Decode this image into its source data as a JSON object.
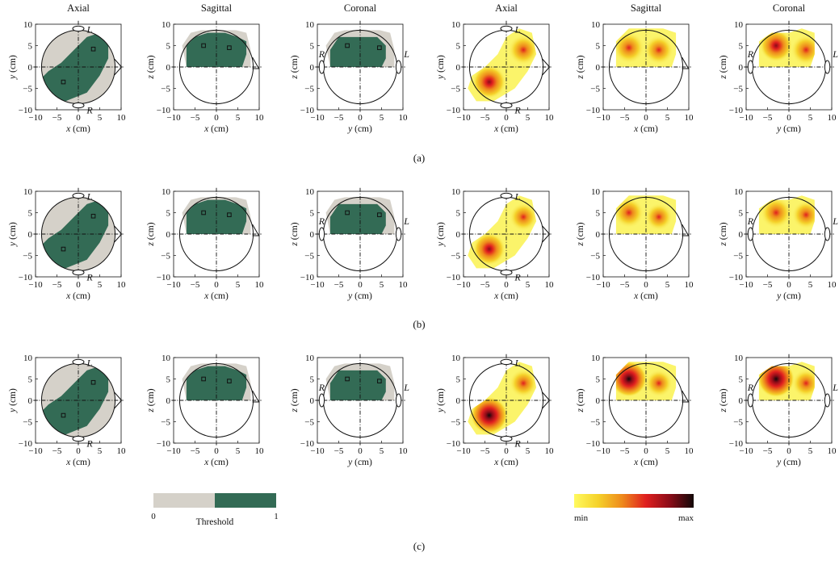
{
  "titles": [
    "Axial",
    "Sagittal",
    "Coronal",
    "Axial",
    "Sagittal",
    "Coronal"
  ],
  "row_labels": [
    "(a)",
    "(b)",
    "(c)"
  ],
  "axis": {
    "ticks": [
      "−10",
      "−5",
      "0",
      "5",
      "10"
    ],
    "xlabels": [
      "x (cm)",
      "x (cm)",
      "y (cm)",
      "x (cm)",
      "x (cm)",
      "y (cm)"
    ],
    "ylabels": [
      "y (cm)",
      "z (cm)",
      "z (cm)",
      "y (cm)",
      "z (cm)",
      "z (cm)"
    ],
    "xlabel_var": [
      "x",
      "x",
      "y",
      "x",
      "x",
      "y"
    ],
    "ylabel_var": [
      "y",
      "z",
      "z",
      "y",
      "z",
      "z"
    ],
    "unit": "(cm)"
  },
  "ear_labels": {
    "axial_top": "L",
    "axial_bottom": "R",
    "coronal_left": "R",
    "coronal_right": "L"
  },
  "colorbar_threshold": {
    "label": "Threshold",
    "min_label": "0",
    "max_label": "1",
    "colors": [
      "#d5d1c9",
      "#336b55"
    ]
  },
  "colorbar_intensity": {
    "min_label": "min",
    "max_label": "max",
    "colors": [
      "#fffa5f",
      "#f5d22a",
      "#ee8a1c",
      "#e01f1f",
      "#8b0c18",
      "#120808"
    ]
  },
  "colors": {
    "threshold_background": "#d5d1c9",
    "threshold_active": "#336b55",
    "marker": "#111111"
  }
}
